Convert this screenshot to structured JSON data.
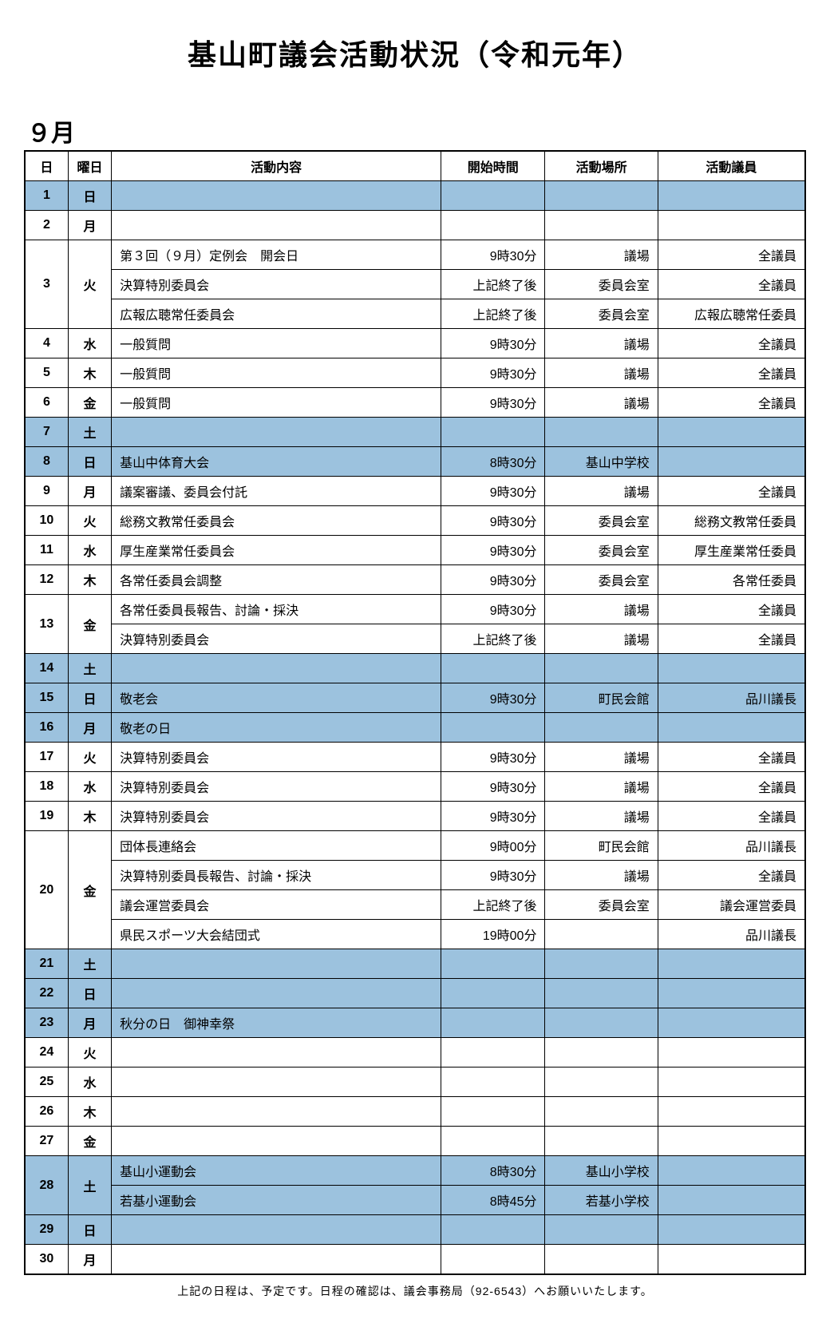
{
  "title": "基山町議会活動状況（令和元年）",
  "month_label": "９月",
  "headers": {
    "day": "日",
    "dow": "曜日",
    "activity": "活動内容",
    "time": "開始時間",
    "place": "活動場所",
    "member": "活動議員"
  },
  "colors": {
    "shaded": "#9cc2de",
    "border": "#000000",
    "background": "#ffffff"
  },
  "footer": "上記の日程は、予定です。日程の確認は、議会事務局（92-6543）へお願いいたします。",
  "days": [
    {
      "day": "1",
      "dow": "日",
      "shaded": true,
      "rows": [
        {
          "activity": "",
          "time": "",
          "place": "",
          "member": ""
        }
      ]
    },
    {
      "day": "2",
      "dow": "月",
      "shaded": false,
      "rows": [
        {
          "activity": "",
          "time": "",
          "place": "",
          "member": ""
        }
      ]
    },
    {
      "day": "3",
      "dow": "火",
      "shaded": false,
      "rows": [
        {
          "activity": "第３回（９月）定例会　開会日",
          "time": "9時30分",
          "place": "議場",
          "member": "全議員"
        },
        {
          "activity": "決算特別委員会",
          "time": "上記終了後",
          "place": "委員会室",
          "member": "全議員"
        },
        {
          "activity": "広報広聴常任委員会",
          "time": "上記終了後",
          "place": "委員会室",
          "member": "広報広聴常任委員"
        }
      ]
    },
    {
      "day": "4",
      "dow": "水",
      "shaded": false,
      "rows": [
        {
          "activity": "一般質問",
          "time": "9時30分",
          "place": "議場",
          "member": "全議員"
        }
      ]
    },
    {
      "day": "5",
      "dow": "木",
      "shaded": false,
      "rows": [
        {
          "activity": "一般質問",
          "time": "9時30分",
          "place": "議場",
          "member": "全議員"
        }
      ]
    },
    {
      "day": "6",
      "dow": "金",
      "shaded": false,
      "rows": [
        {
          "activity": "一般質問",
          "time": "9時30分",
          "place": "議場",
          "member": "全議員"
        }
      ]
    },
    {
      "day": "7",
      "dow": "土",
      "shaded": true,
      "rows": [
        {
          "activity": "",
          "time": "",
          "place": "",
          "member": ""
        }
      ]
    },
    {
      "day": "8",
      "dow": "日",
      "shaded": true,
      "rows": [
        {
          "activity": "基山中体育大会",
          "time": "8時30分",
          "place": "基山中学校",
          "member": ""
        }
      ]
    },
    {
      "day": "9",
      "dow": "月",
      "shaded": false,
      "rows": [
        {
          "activity": "議案審議、委員会付託",
          "time": "9時30分",
          "place": "議場",
          "member": "全議員"
        }
      ]
    },
    {
      "day": "10",
      "dow": "火",
      "shaded": false,
      "rows": [
        {
          "activity": "総務文教常任委員会",
          "time": "9時30分",
          "place": "委員会室",
          "member": "総務文教常任委員"
        }
      ]
    },
    {
      "day": "11",
      "dow": "水",
      "shaded": false,
      "rows": [
        {
          "activity": "厚生産業常任委員会",
          "time": "9時30分",
          "place": "委員会室",
          "member": "厚生産業常任委員"
        }
      ]
    },
    {
      "day": "12",
      "dow": "木",
      "shaded": false,
      "rows": [
        {
          "activity": "各常任委員会調整",
          "time": "9時30分",
          "place": "委員会室",
          "member": "各常任委員"
        }
      ]
    },
    {
      "day": "13",
      "dow": "金",
      "shaded": false,
      "rows": [
        {
          "activity": "各常任委員長報告、討論・採決",
          "time": "9時30分",
          "place": "議場",
          "member": "全議員"
        },
        {
          "activity": "決算特別委員会",
          "time": "上記終了後",
          "place": "議場",
          "member": "全議員"
        }
      ]
    },
    {
      "day": "14",
      "dow": "土",
      "shaded": true,
      "rows": [
        {
          "activity": "",
          "time": "",
          "place": "",
          "member": ""
        }
      ]
    },
    {
      "day": "15",
      "dow": "日",
      "shaded": true,
      "rows": [
        {
          "activity": "敬老会",
          "time": "9時30分",
          "place": "町民会館",
          "member": "品川議長"
        }
      ]
    },
    {
      "day": "16",
      "dow": "月",
      "shaded": true,
      "rows": [
        {
          "activity": "敬老の日",
          "time": "",
          "place": "",
          "member": ""
        }
      ]
    },
    {
      "day": "17",
      "dow": "火",
      "shaded": false,
      "rows": [
        {
          "activity": "決算特別委員会",
          "time": "9時30分",
          "place": "議場",
          "member": "全議員"
        }
      ]
    },
    {
      "day": "18",
      "dow": "水",
      "shaded": false,
      "rows": [
        {
          "activity": "決算特別委員会",
          "time": "9時30分",
          "place": "議場",
          "member": "全議員"
        }
      ]
    },
    {
      "day": "19",
      "dow": "木",
      "shaded": false,
      "rows": [
        {
          "activity": "決算特別委員会",
          "time": "9時30分",
          "place": "議場",
          "member": "全議員"
        }
      ]
    },
    {
      "day": "20",
      "dow": "金",
      "shaded": false,
      "rows": [
        {
          "activity": "団体長連絡会",
          "time": "9時00分",
          "place": "町民会館",
          "member": "品川議長"
        },
        {
          "activity": "決算特別委員長報告、討論・採決",
          "time": "9時30分",
          "place": "議場",
          "member": "全議員"
        },
        {
          "activity": "議会運営委員会",
          "time": "上記終了後",
          "place": "委員会室",
          "member": "議会運営委員"
        },
        {
          "activity": "県民スポーツ大会結団式",
          "time": "19時00分",
          "place": "",
          "member": "品川議長"
        }
      ]
    },
    {
      "day": "21",
      "dow": "土",
      "shaded": true,
      "rows": [
        {
          "activity": "",
          "time": "",
          "place": "",
          "member": ""
        }
      ]
    },
    {
      "day": "22",
      "dow": "日",
      "shaded": true,
      "rows": [
        {
          "activity": "",
          "time": "",
          "place": "",
          "member": ""
        }
      ]
    },
    {
      "day": "23",
      "dow": "月",
      "shaded": true,
      "rows": [
        {
          "activity": "秋分の日　御神幸祭",
          "time": "",
          "place": "",
          "member": ""
        }
      ]
    },
    {
      "day": "24",
      "dow": "火",
      "shaded": false,
      "rows": [
        {
          "activity": "",
          "time": "",
          "place": "",
          "member": ""
        }
      ]
    },
    {
      "day": "25",
      "dow": "水",
      "shaded": false,
      "rows": [
        {
          "activity": "",
          "time": "",
          "place": "",
          "member": ""
        }
      ]
    },
    {
      "day": "26",
      "dow": "木",
      "shaded": false,
      "rows": [
        {
          "activity": "",
          "time": "",
          "place": "",
          "member": ""
        }
      ]
    },
    {
      "day": "27",
      "dow": "金",
      "shaded": false,
      "rows": [
        {
          "activity": "",
          "time": "",
          "place": "",
          "member": ""
        }
      ]
    },
    {
      "day": "28",
      "dow": "土",
      "shaded": true,
      "rows": [
        {
          "activity": "基山小運動会",
          "time": "8時30分",
          "place": "基山小学校",
          "member": ""
        },
        {
          "activity": "若基小運動会",
          "time": "8時45分",
          "place": "若基小学校",
          "member": ""
        }
      ]
    },
    {
      "day": "29",
      "dow": "日",
      "shaded": true,
      "rows": [
        {
          "activity": "",
          "time": "",
          "place": "",
          "member": ""
        }
      ]
    },
    {
      "day": "30",
      "dow": "月",
      "shaded": false,
      "rows": [
        {
          "activity": "",
          "time": "",
          "place": "",
          "member": ""
        }
      ]
    }
  ]
}
